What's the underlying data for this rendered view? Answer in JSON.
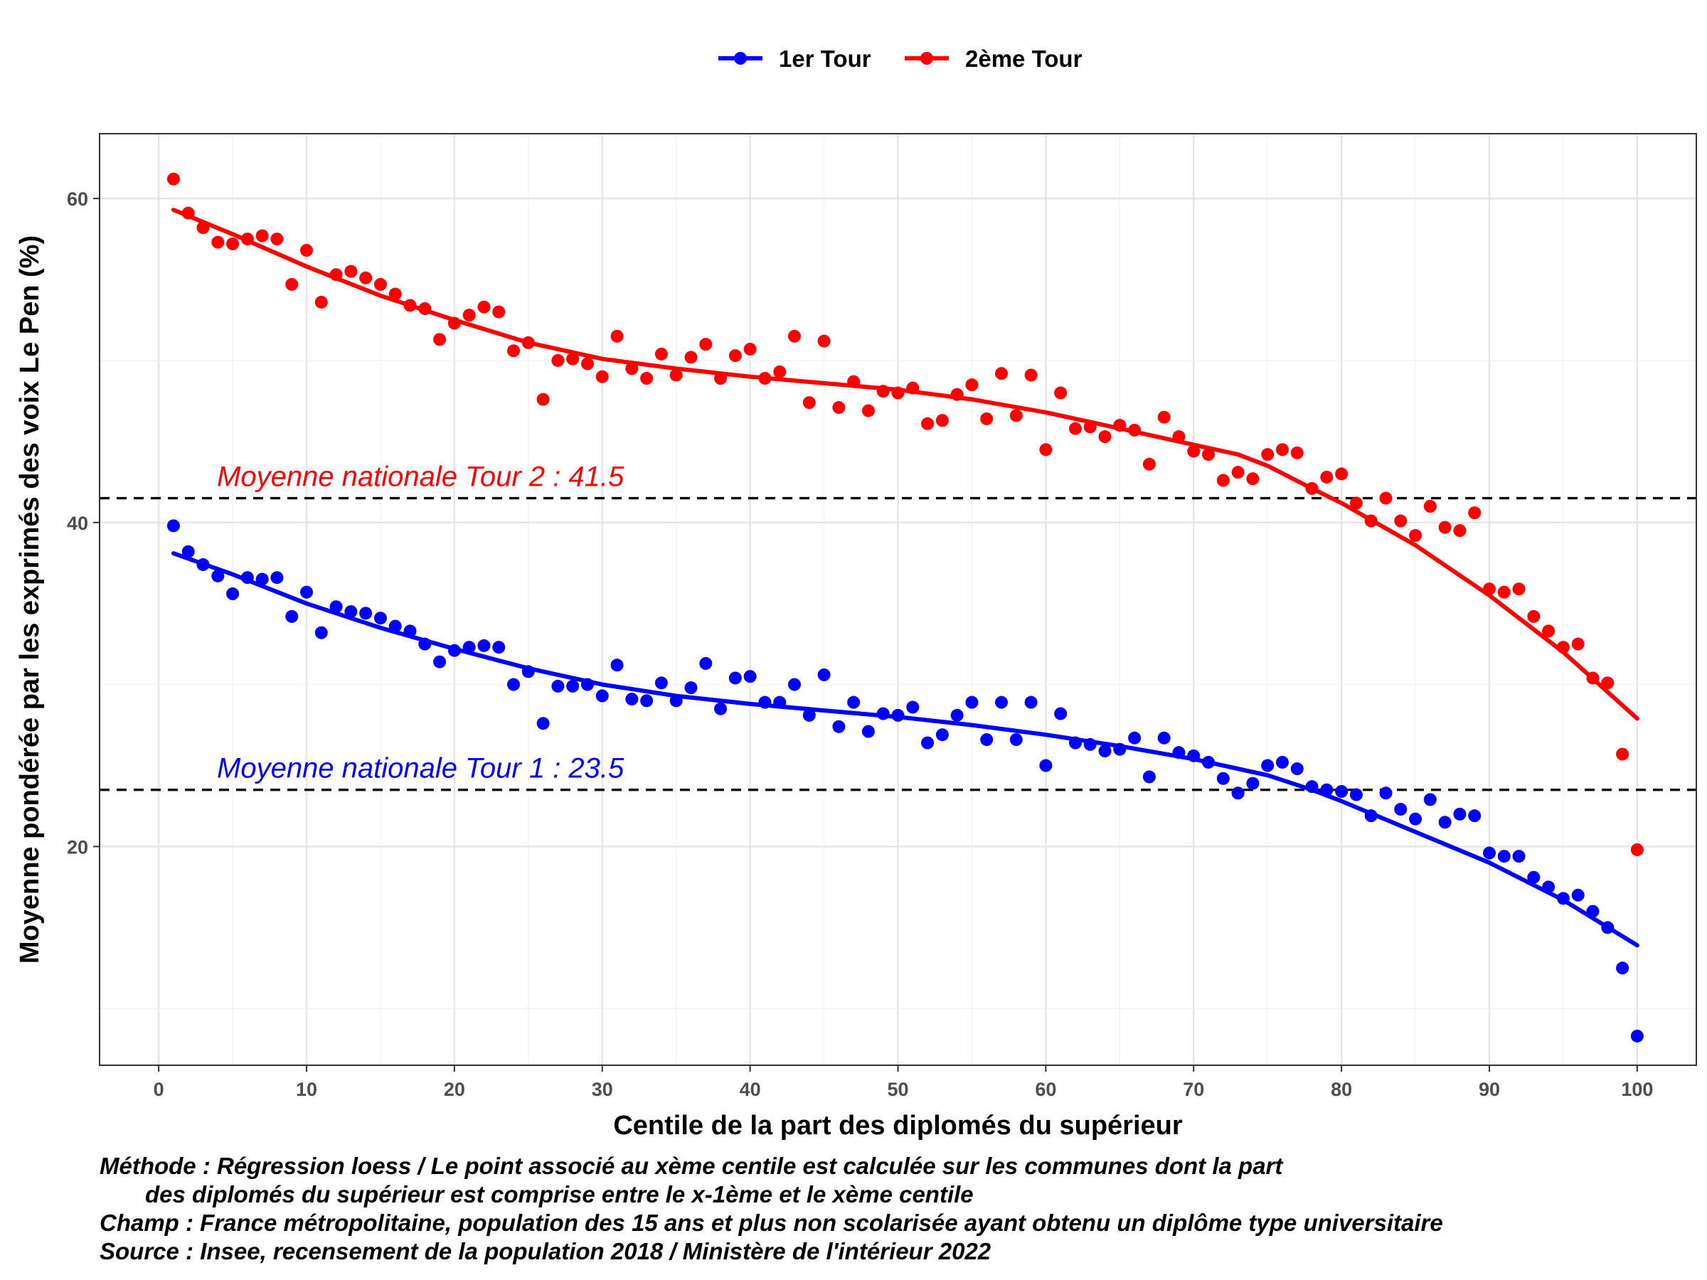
{
  "chart_data": {
    "type": "scatter",
    "xlabel": "Centile de la part des diplomés du supérieur",
    "ylabel": "Moyenne pondérée par les exprimés des voix Le Pen (%)",
    "xlim": [
      -4,
      104
    ],
    "ylim": [
      6.5,
      64
    ],
    "x_ticks": [
      0,
      10,
      20,
      30,
      40,
      50,
      60,
      70,
      80,
      90,
      100
    ],
    "y_ticks": [
      20,
      40,
      60
    ],
    "grid": true,
    "legend_position": "top",
    "series": [
      {
        "name": "1er Tour",
        "color": "#0000ff",
        "x": [
          1,
          2,
          3,
          4,
          5,
          6,
          7,
          8,
          9,
          10,
          11,
          12,
          13,
          14,
          15,
          16,
          17,
          18,
          19,
          20,
          21,
          22,
          23,
          24,
          25,
          26,
          27,
          28,
          29,
          30,
          31,
          32,
          33,
          34,
          35,
          36,
          37,
          38,
          39,
          40,
          41,
          42,
          43,
          44,
          45,
          46,
          47,
          48,
          49,
          50,
          51,
          52,
          53,
          54,
          55,
          56,
          57,
          58,
          59,
          60,
          61,
          62,
          63,
          64,
          65,
          66,
          67,
          68,
          69,
          70,
          71,
          72,
          73,
          74,
          75,
          76,
          77,
          78,
          79,
          80,
          81,
          82,
          83,
          84,
          85,
          86,
          87,
          88,
          89,
          90,
          91,
          92,
          93,
          94,
          95,
          96,
          97,
          98,
          99,
          100
        ],
        "y": [
          39.8,
          38.2,
          37.4,
          36.7,
          35.6,
          36.6,
          36.5,
          36.6,
          34.2,
          35.7,
          33.2,
          34.8,
          34.5,
          34.4,
          34.1,
          33.6,
          33.3,
          32.5,
          31.4,
          32.1,
          32.3,
          32.4,
          32.3,
          30.0,
          30.8,
          27.6,
          29.9,
          29.9,
          30.0,
          29.3,
          31.2,
          29.1,
          29.0,
          30.1,
          29.0,
          29.8,
          31.3,
          28.5,
          30.4,
          30.5,
          28.9,
          28.9,
          30.0,
          28.1,
          30.6,
          27.4,
          28.9,
          27.1,
          28.2,
          28.1,
          28.6,
          26.4,
          26.9,
          28.1,
          28.9,
          26.6,
          28.9,
          26.6,
          28.9,
          25.0,
          28.2,
          26.4,
          26.3,
          25.9,
          26.0,
          26.7,
          24.3,
          26.7,
          25.8,
          25.6,
          25.2,
          24.2,
          23.3,
          23.9,
          25.0,
          25.2,
          24.8,
          23.7,
          23.5,
          23.4,
          23.2,
          21.9,
          23.3,
          22.3,
          21.7,
          22.9,
          21.5,
          22.0,
          21.9,
          19.6,
          19.4,
          19.4,
          18.1,
          17.5,
          16.8,
          17.0,
          16.0,
          15.0,
          12.5,
          8.3
        ]
      },
      {
        "name": "2ème Tour",
        "color": "#ff0000",
        "x": [
          1,
          2,
          3,
          4,
          5,
          6,
          7,
          8,
          9,
          10,
          11,
          12,
          13,
          14,
          15,
          16,
          17,
          18,
          19,
          20,
          21,
          22,
          23,
          24,
          25,
          26,
          27,
          28,
          29,
          30,
          31,
          32,
          33,
          34,
          35,
          36,
          37,
          38,
          39,
          40,
          41,
          42,
          43,
          44,
          45,
          46,
          47,
          48,
          49,
          50,
          51,
          52,
          53,
          54,
          55,
          56,
          57,
          58,
          59,
          60,
          61,
          62,
          63,
          64,
          65,
          66,
          67,
          68,
          69,
          70,
          71,
          72,
          73,
          74,
          75,
          76,
          77,
          78,
          79,
          80,
          81,
          82,
          83,
          84,
          85,
          86,
          87,
          88,
          89,
          90,
          91,
          92,
          93,
          94,
          95,
          96,
          97,
          98,
          99,
          100
        ],
        "y": [
          61.2,
          59.1,
          58.2,
          57.3,
          57.2,
          57.5,
          57.7,
          57.5,
          54.7,
          56.8,
          53.6,
          55.3,
          55.5,
          55.1,
          54.7,
          54.1,
          53.4,
          53.2,
          51.3,
          52.3,
          52.8,
          53.3,
          53.0,
          50.6,
          51.1,
          47.6,
          50.0,
          50.1,
          49.8,
          49.0,
          51.5,
          49.5,
          48.9,
          50.4,
          49.1,
          50.2,
          51.0,
          48.9,
          50.3,
          50.7,
          48.9,
          49.3,
          51.5,
          47.4,
          51.2,
          47.1,
          48.7,
          46.9,
          48.1,
          48.0,
          48.3,
          46.1,
          46.3,
          47.9,
          48.5,
          46.4,
          49.2,
          46.6,
          49.1,
          44.5,
          48.0,
          45.8,
          45.9,
          45.3,
          46.0,
          45.7,
          43.6,
          46.5,
          45.3,
          44.4,
          44.2,
          42.6,
          43.1,
          42.7,
          44.2,
          44.5,
          44.3,
          42.1,
          42.8,
          43.0,
          41.2,
          40.1,
          41.5,
          40.1,
          39.2,
          41.0,
          39.7,
          39.5,
          40.6,
          35.9,
          35.7,
          35.9,
          34.2,
          33.3,
          32.3,
          32.5,
          30.4,
          30.1,
          25.7,
          19.8
        ]
      }
    ],
    "loess": [
      {
        "series": "1er Tour",
        "x": [
          1,
          5,
          10,
          15,
          20,
          25,
          30,
          35,
          40,
          45,
          50,
          55,
          60,
          65,
          70,
          75,
          78,
          80,
          85,
          90,
          95,
          100
        ],
        "y": [
          38.1,
          36.8,
          35.0,
          33.5,
          32.2,
          31.0,
          30.0,
          29.3,
          28.8,
          28.4,
          28.0,
          27.5,
          26.9,
          26.2,
          25.4,
          24.4,
          23.5,
          22.8,
          20.9,
          19.0,
          16.7,
          13.9
        ]
      },
      {
        "series": "2ème Tour",
        "x": [
          1,
          5,
          10,
          15,
          20,
          25,
          30,
          35,
          40,
          45,
          50,
          55,
          60,
          65,
          70,
          73,
          75,
          78,
          80,
          85,
          90,
          95,
          100
        ],
        "y": [
          59.3,
          57.8,
          55.8,
          54.0,
          52.5,
          51.1,
          50.1,
          49.5,
          49.0,
          48.6,
          48.2,
          47.6,
          46.8,
          45.8,
          44.8,
          44.2,
          43.5,
          42.1,
          41.2,
          38.6,
          35.5,
          32.0,
          27.9
        ]
      }
    ],
    "reference_lines": [
      {
        "y": 41.5,
        "label": "Moyenne nationale Tour 2 : 41.5",
        "color": "#ff0000"
      },
      {
        "y": 23.5,
        "label": "Moyenne nationale Tour 1 : 23.5",
        "color": "#0000ff"
      }
    ]
  },
  "caption": {
    "line1": "Méthode : Régression loess / Le point associé au xème centile est calculée sur les communes dont la part",
    "line2": "des diplomés du supérieur est comprise entre le x-1ème et le xème centile",
    "line3": "Champ : France métropolitaine, population des 15 ans et plus non scolarisée ayant obtenu un diplôme type universitaire",
    "line4": "Source : Insee, recensement de la population 2018 / Ministère de l'intérieur 2022"
  }
}
